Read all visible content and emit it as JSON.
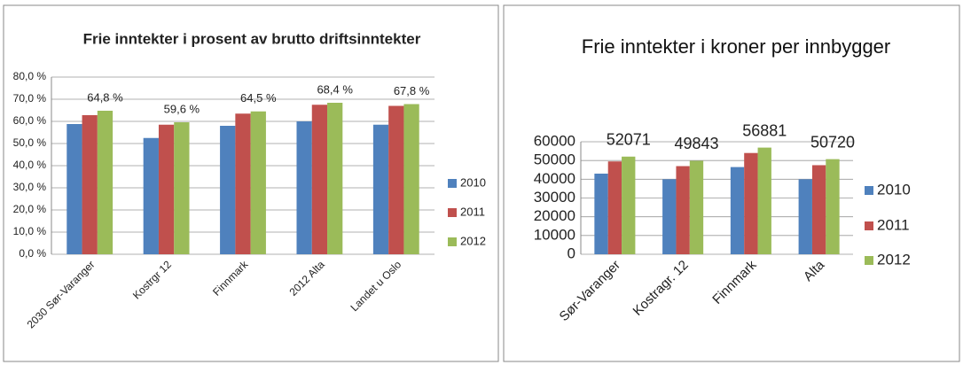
{
  "chart_data": [
    {
      "type": "bar",
      "title": "Frie inntekter i prosent av brutto driftsinntekter",
      "categories": [
        "2030 Sør-Varanger",
        "Kostrgr 12",
        "Finnmark",
        "2012 Alta",
        "Landet u Oslo"
      ],
      "series": [
        {
          "name": "2010",
          "color": "#4f81bd",
          "values": [
            58.8,
            52.5,
            58.0,
            60.0,
            58.5
          ]
        },
        {
          "name": "2011",
          "color": "#c0504d",
          "values": [
            62.8,
            58.5,
            63.5,
            67.5,
            67.0
          ]
        },
        {
          "name": "2012",
          "color": "#9bbb59",
          "values": [
            64.8,
            59.6,
            64.5,
            68.4,
            67.8
          ],
          "value_labels": [
            "64,8 %",
            "59,6 %",
            "64,5 %",
            "68,4 %",
            "67,8 %"
          ]
        }
      ],
      "ylim": [
        0,
        80
      ],
      "yticks": [
        {
          "value": 0,
          "label": "0,0 %"
        },
        {
          "value": 10,
          "label": "10,0 %"
        },
        {
          "value": 20,
          "label": "20,0 %"
        },
        {
          "value": 30,
          "label": "30,0 %"
        },
        {
          "value": 40,
          "label": "40,0 %"
        },
        {
          "value": 50,
          "label": "50,0 %"
        },
        {
          "value": 60,
          "label": "60,0 %"
        },
        {
          "value": 70,
          "label": "70,0 %"
        },
        {
          "value": 80,
          "label": "80,0 %"
        }
      ],
      "grid": true,
      "legend": "right"
    },
    {
      "type": "bar",
      "title": "Frie inntekter i kroner per innbygger",
      "categories": [
        "Sør-Varanger",
        "Kostragr. 12",
        "Finnmark",
        "Alta"
      ],
      "series": [
        {
          "name": "2010",
          "color": "#4f81bd",
          "values": [
            43000,
            40000,
            46500,
            40000
          ]
        },
        {
          "name": "2011",
          "color": "#c0504d",
          "values": [
            49500,
            47000,
            54000,
            47500
          ]
        },
        {
          "name": "2012",
          "color": "#9bbb59",
          "values": [
            52071,
            49843,
            56881,
            50720
          ],
          "data_labels": true
        }
      ],
      "ylim": [
        0,
        60000
      ],
      "yticks": [
        0,
        10000,
        20000,
        30000,
        40000,
        50000,
        60000
      ],
      "grid": true,
      "legend": "right"
    }
  ]
}
